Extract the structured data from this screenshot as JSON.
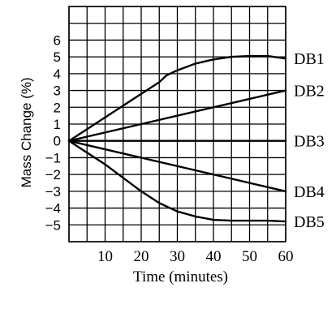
{
  "chart_data": {
    "type": "line",
    "xlabel": "Time (minutes)",
    "ylabel": "Mass Change (%)",
    "xlim": [
      0,
      60
    ],
    "ylim": [
      -6,
      8
    ],
    "x_ticks": [
      "10",
      "20",
      "30",
      "40",
      "50",
      "60"
    ],
    "y_ticks": [
      "6",
      "5",
      "4",
      "3",
      "2",
      "1",
      "0",
      "−1",
      "−2",
      "−3",
      "−4",
      "−5"
    ],
    "grid": true,
    "series": [
      {
        "name": "DB1",
        "x": [
          0,
          5,
          10,
          15,
          20,
          25,
          27,
          30,
          35,
          40,
          45,
          50,
          55,
          60
        ],
        "y": [
          0,
          0.7,
          1.4,
          2.1,
          2.8,
          3.5,
          3.9,
          4.2,
          4.6,
          4.85,
          5.0,
          5.05,
          5.05,
          4.9
        ]
      },
      {
        "name": "DB2",
        "x": [
          0,
          60
        ],
        "y": [
          0,
          3.0
        ]
      },
      {
        "name": "DB3",
        "x": [
          0,
          60
        ],
        "y": [
          0,
          0
        ]
      },
      {
        "name": "DB4",
        "x": [
          0,
          60
        ],
        "y": [
          0,
          -3.0
        ]
      },
      {
        "name": "DB5",
        "x": [
          0,
          5,
          10,
          15,
          20,
          25,
          30,
          35,
          40,
          45,
          50,
          55,
          60
        ],
        "y": [
          0,
          -0.7,
          -1.4,
          -2.2,
          -3.0,
          -3.7,
          -4.2,
          -4.5,
          -4.7,
          -4.75,
          -4.75,
          -4.75,
          -4.8
        ]
      }
    ]
  }
}
